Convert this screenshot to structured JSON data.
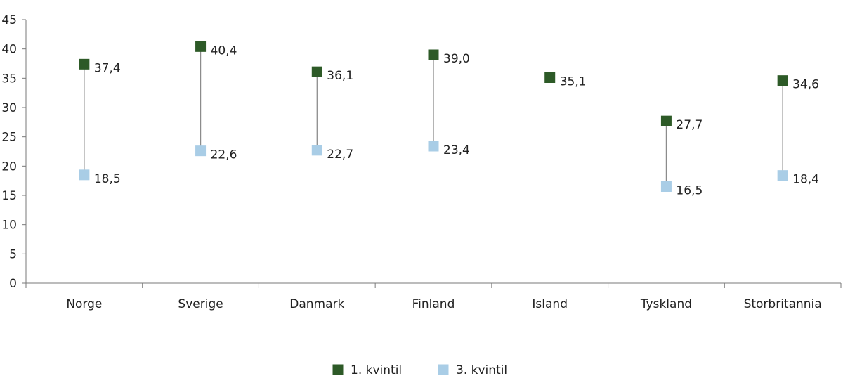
{
  "chart_data": {
    "type": "scatter",
    "subtype": "dumbbell",
    "title": "",
    "xlabel": "",
    "ylabel": "",
    "ylim": [
      0,
      45
    ],
    "yticks": [
      0,
      5,
      10,
      15,
      20,
      25,
      30,
      35,
      40,
      45
    ],
    "ytick_labels": [
      "0",
      "5",
      "10",
      "15",
      "20",
      "25",
      "30",
      "35",
      "40",
      "45"
    ],
    "grid": false,
    "legend_position": "bottom-center",
    "categories": [
      "Norge",
      "Sverige",
      "Danmark",
      "Finland",
      "Island",
      "Tyskland",
      "Storbritannia"
    ],
    "series": [
      {
        "name": "1. kvintil",
        "color": "#2d5a27",
        "marker": "square",
        "values": [
          37.4,
          40.4,
          36.1,
          39.0,
          35.1,
          27.7,
          34.6
        ],
        "labels": [
          "37,4",
          "40,4",
          "36,1",
          "39,0",
          "35,1",
          "27,7",
          "34,6"
        ]
      },
      {
        "name": "3. kvintil",
        "color": "#a9cde6",
        "marker": "square",
        "values": [
          18.5,
          22.6,
          22.7,
          23.4,
          null,
          16.5,
          18.4
        ],
        "labels": [
          "18,5",
          "22,6",
          "22,7",
          "23,4",
          null,
          "16,5",
          "18,4"
        ]
      }
    ],
    "connector_color": "#8c8c8c"
  }
}
